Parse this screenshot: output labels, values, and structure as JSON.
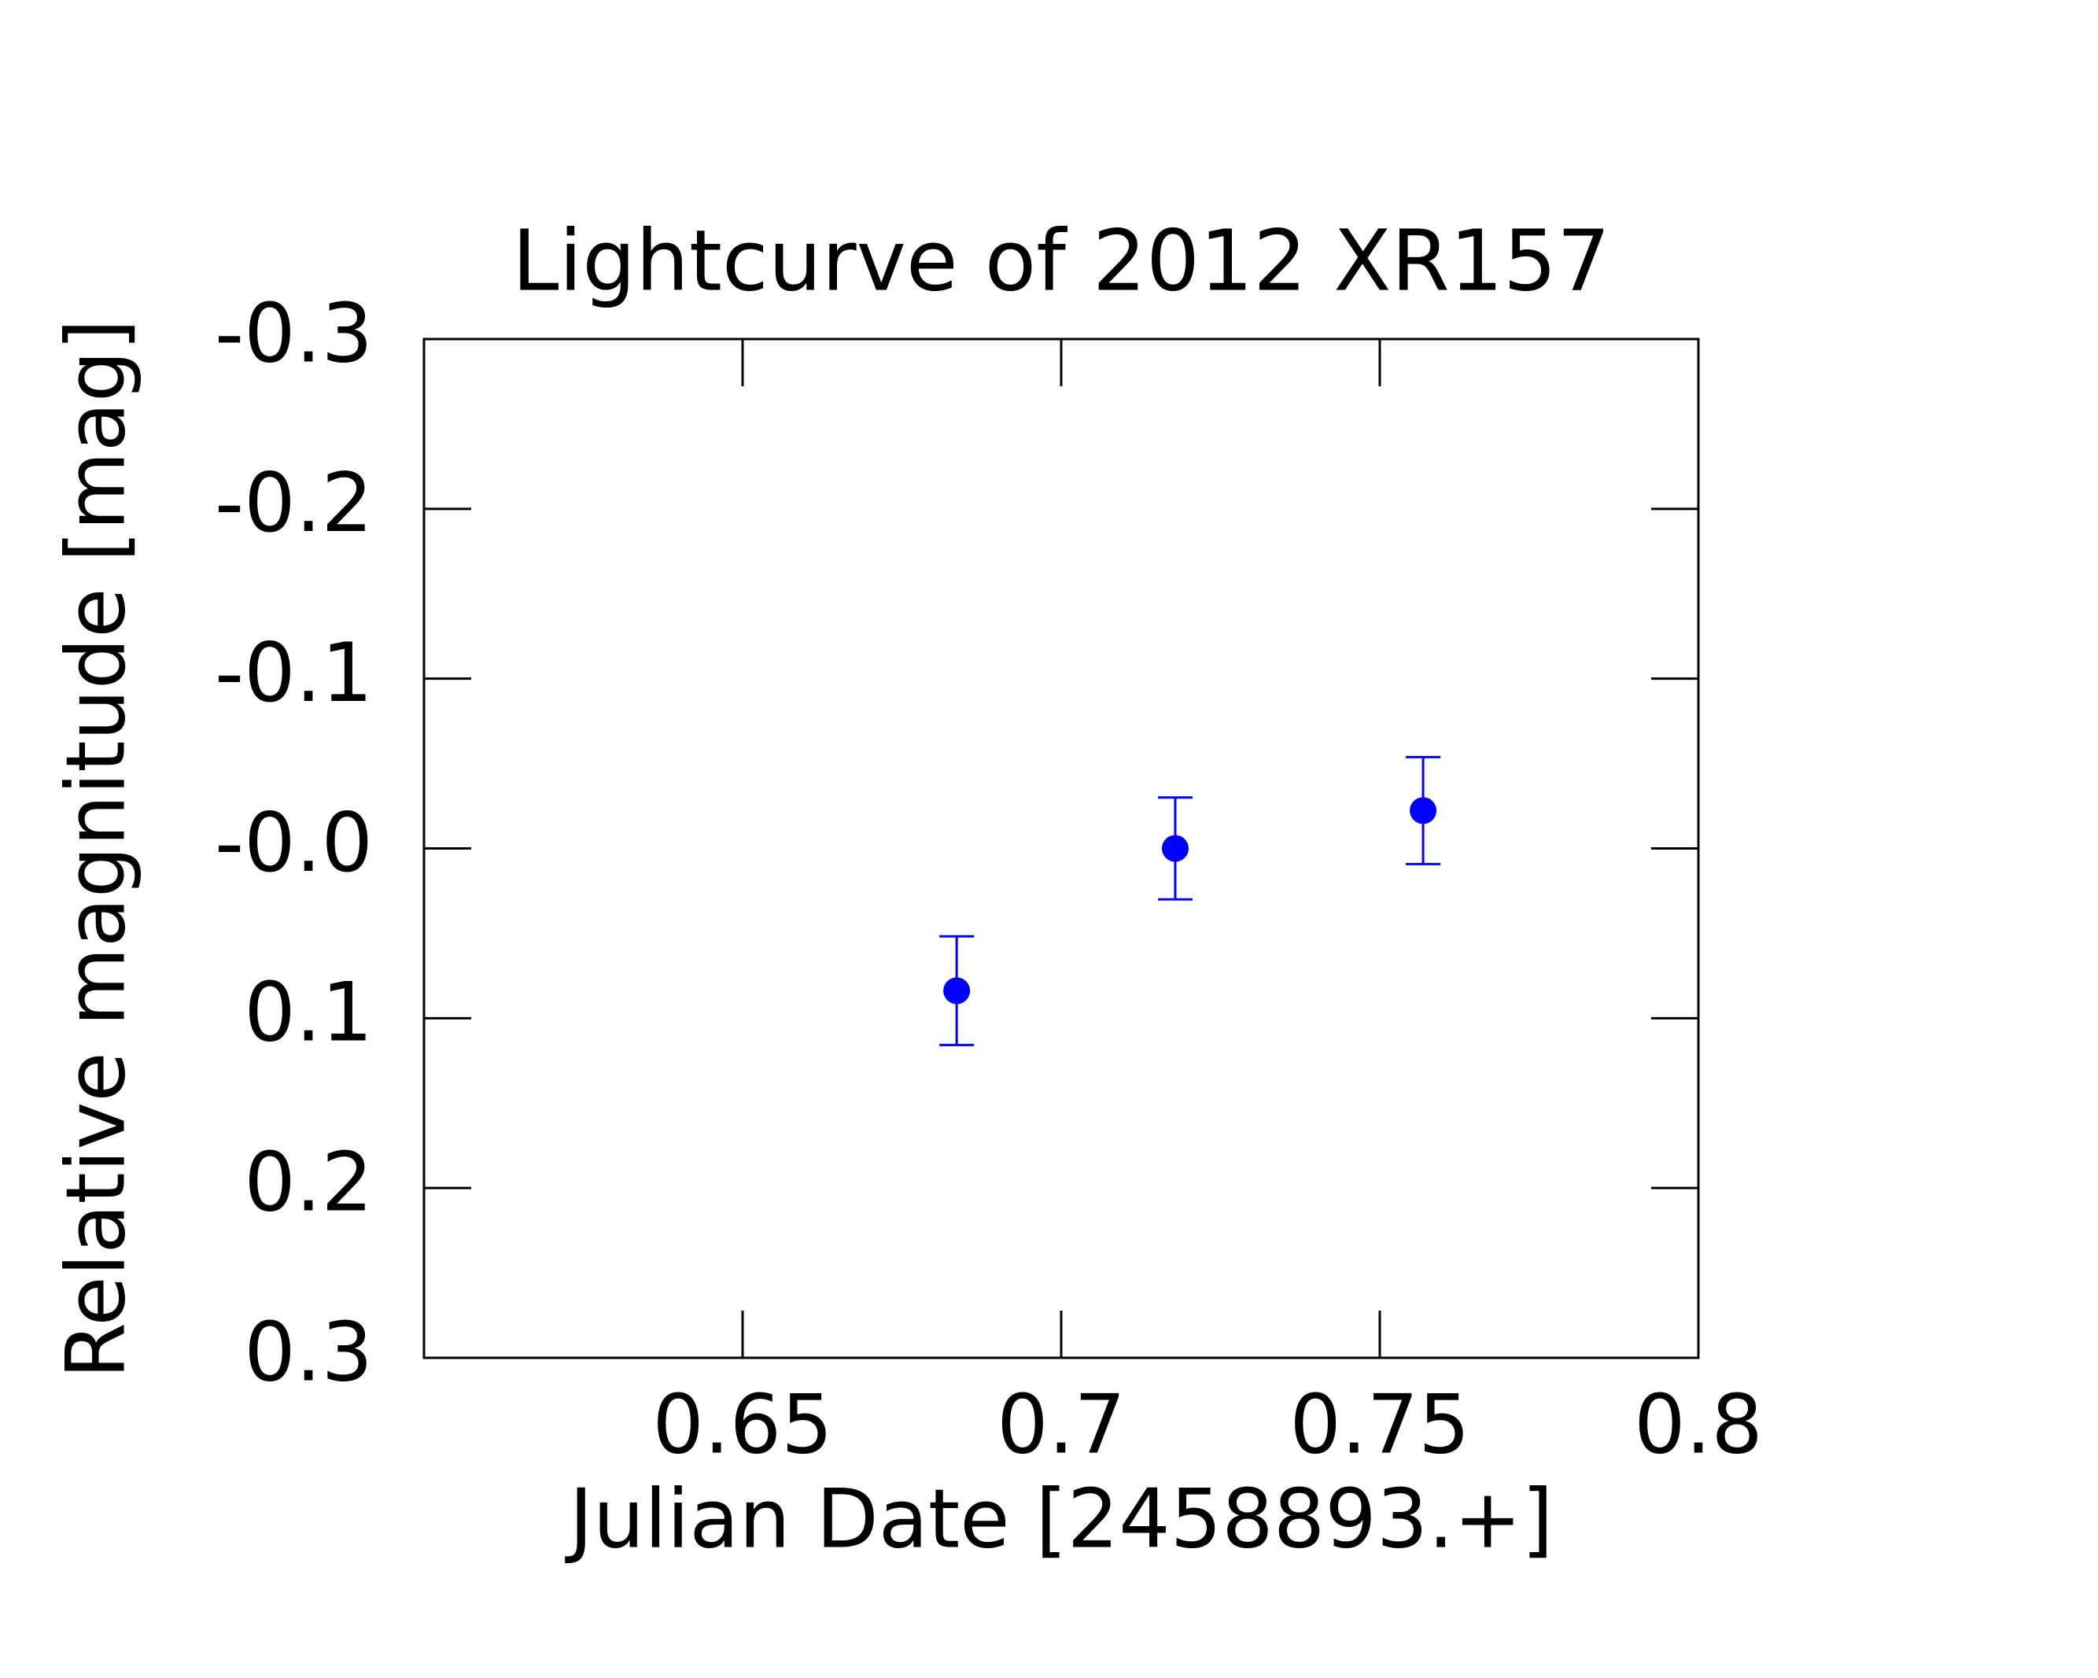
{
  "chart_data": {
    "type": "scatter",
    "title": "Lightcurve of 2012 XR157",
    "x_label": "Julian Date [2458893.+]",
    "y_label": "Relative magnitude [mag]",
    "xlim": [
      0.6,
      0.8
    ],
    "xticks": [
      0.65,
      0.7,
      0.75,
      0.8
    ],
    "ylim": [
      0.3,
      -0.3
    ],
    "yticks": [
      -0.3,
      -0.2,
      -0.1,
      {
        "value": 0,
        "label": "-0.0"
      },
      0.1,
      0.2,
      0.3
    ],
    "series": [
      {
        "color": "#0000ff",
        "x": [
          0.6836,
          0.7179,
          0.7568
        ],
        "values": [
          0.0838,
          0.0,
          -0.0223
        ],
        "errors": [
          0.032,
          0.03,
          0.0315
        ]
      }
    ]
  }
}
